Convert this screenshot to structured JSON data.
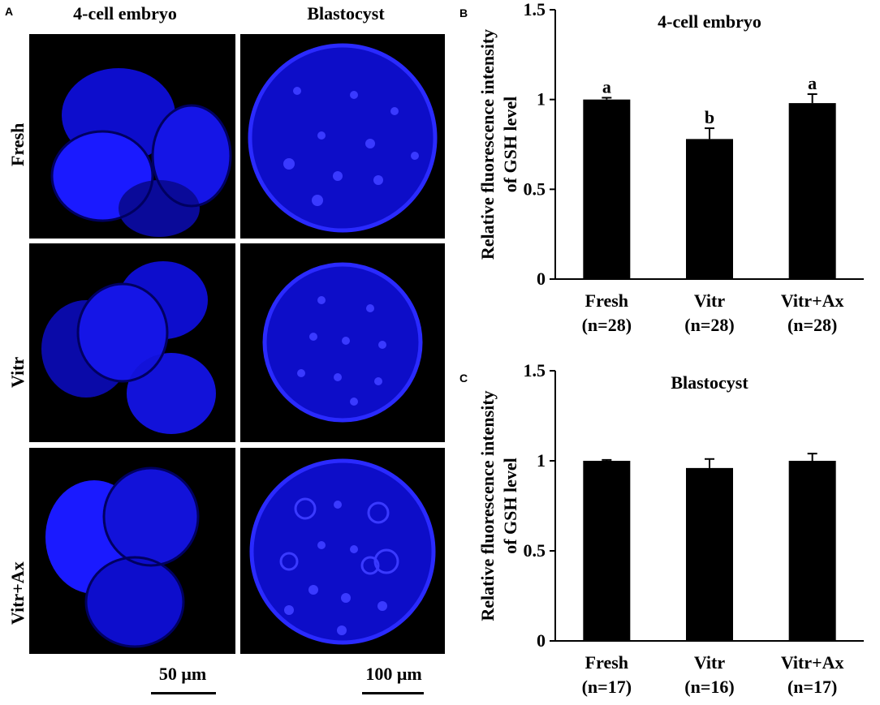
{
  "panel_a": {
    "letter": "A",
    "columns": [
      "4-cell embryo",
      "Blastocyst"
    ],
    "rows": [
      "Fresh",
      "Vitr",
      "Vitr+Ax"
    ],
    "scale_bars": [
      "50 μm",
      "100 μm"
    ],
    "stain_color": "#1a1aff"
  },
  "panel_b": {
    "letter": "B"
  },
  "panel_c": {
    "letter": "C"
  },
  "chart_data": [
    {
      "type": "bar",
      "title": "4-cell embryo",
      "ylabel": "Relative fluorescence intensity of GSH level",
      "categories": [
        "Fresh",
        "Vitr",
        "Vitr+Ax"
      ],
      "category_sub": [
        "(n=28)",
        "(n=28)",
        "(n=28)"
      ],
      "values": [
        1.0,
        0.78,
        0.98
      ],
      "errors": [
        0.01,
        0.06,
        0.05
      ],
      "annotations": [
        "a",
        "b",
        "a"
      ],
      "ylim": [
        0,
        1.5
      ],
      "yticks": [
        0,
        0.5,
        1,
        1.5
      ],
      "ytick_labels": [
        "0",
        "0.5",
        "1",
        "1.5"
      ],
      "bar_color": "#000000"
    },
    {
      "type": "bar",
      "title": "Blastocyst",
      "ylabel": "Relative fluorescence intensity of GSH level",
      "categories": [
        "Fresh",
        "Vitr",
        "Vitr+Ax"
      ],
      "category_sub": [
        "(n=17)",
        "(n=16)",
        "(n=17)"
      ],
      "values": [
        1.0,
        0.96,
        1.0
      ],
      "errors": [
        0.005,
        0.05,
        0.04
      ],
      "annotations": [
        "",
        "",
        ""
      ],
      "ylim": [
        0,
        1.5
      ],
      "yticks": [
        0,
        0.5,
        1,
        1.5
      ],
      "ytick_labels": [
        "0",
        "0.5",
        "1",
        "1.5"
      ],
      "bar_color": "#000000"
    }
  ]
}
